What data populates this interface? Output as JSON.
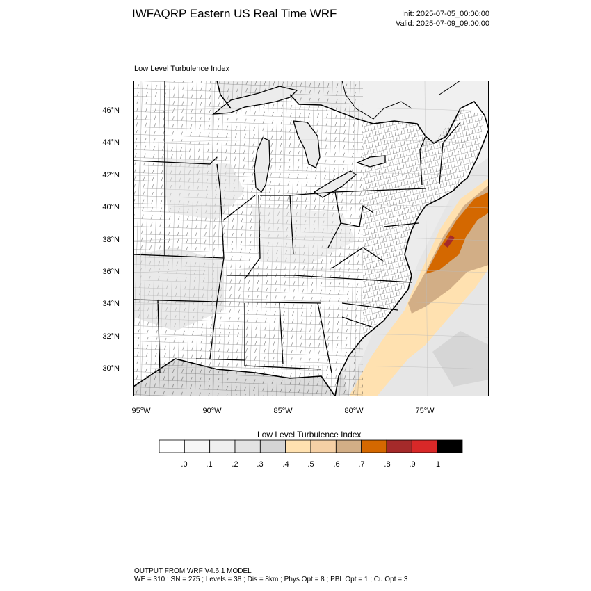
{
  "header": {
    "title": "IWFAQRP Eastern US Real Time WRF",
    "init": "Init: 2025-07-05_00:00:00",
    "valid": "Valid: 2025-07-09_09:00:00"
  },
  "map": {
    "subtitle": "Low Level Turbulence Index",
    "lat_labels": [
      "46°N",
      "44°N",
      "42°N",
      "40°N",
      "38°N",
      "36°N",
      "34°N",
      "32°N",
      "30°N"
    ],
    "lon_labels": [
      "95°W",
      "90°W",
      "85°W",
      "80°W",
      "75°W"
    ]
  },
  "colorbar": {
    "title": "Low Level Turbulence Index",
    "labels": [
      ".0",
      ".1",
      ".2",
      ".3",
      ".4",
      ".5",
      ".6",
      ".7",
      ".8",
      ".9",
      "1"
    ],
    "colors": [
      "#ffffff",
      "#f7f7f7",
      "#efefef",
      "#e3e3e3",
      "#d5d5d5",
      "#ffe1b0",
      "#f5d0a5",
      "#d2ae86",
      "#d46800",
      "#a52a2a",
      "#d82828",
      "#000000"
    ]
  },
  "footer": {
    "line1": "OUTPUT FROM WRF V4.6.1 MODEL",
    "line2": "WE = 310 ; SN = 275 ; Levels = 38 ; Dis = 8km ; Phys Opt = 8 ; PBL Opt = 1 ; Cu Opt = 3"
  }
}
